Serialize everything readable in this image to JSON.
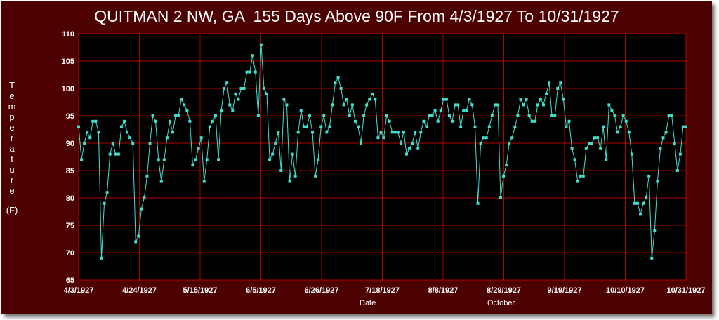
{
  "chart_data": {
    "type": "line",
    "title": "QUITMAN 2 NW, GA  155 Days Above 90F From 4/3/1927 To 10/31/1927",
    "xlabel": "Date",
    "ylabel": "Temperature",
    "ylabel_unit": "(F)",
    "month_label": "October",
    "ylim": [
      65,
      110
    ],
    "yticks": [
      65,
      70,
      75,
      80,
      85,
      90,
      95,
      100,
      105,
      110
    ],
    "xticks": [
      "4/3/1927",
      "4/24/1927",
      "5/15/1927",
      "6/5/1927",
      "6/26/1927",
      "7/18/1927",
      "8/8/1927",
      "8/29/1927",
      "9/19/1927",
      "10/10/1927",
      "10/31/1927"
    ],
    "grid": true,
    "colors": {
      "background": "#4d0000",
      "plot": "#000000",
      "grid": "#b00000",
      "line": "#40e0d0"
    },
    "series": [
      {
        "values": [
          93,
          87,
          90,
          92,
          91,
          94,
          94,
          92,
          69,
          79,
          81,
          88,
          90,
          88,
          88,
          93,
          94,
          92,
          91,
          90,
          72,
          73,
          78,
          80,
          84,
          90,
          95,
          94,
          87,
          83,
          87,
          91,
          94,
          92,
          95,
          95,
          98,
          97,
          96,
          94,
          86,
          87,
          89,
          91,
          83,
          87,
          93,
          94,
          95,
          87,
          96,
          100,
          101,
          97,
          96,
          99,
          98,
          100,
          100,
          103,
          103,
          106,
          103,
          95,
          108,
          100,
          99,
          87,
          88,
          90,
          92,
          85,
          98,
          97,
          83,
          88,
          84,
          92,
          96,
          93,
          93,
          95,
          92,
          84,
          87,
          93,
          95,
          92,
          93,
          97,
          101,
          102,
          100,
          97,
          98,
          95,
          97,
          94,
          93,
          90,
          95,
          97,
          98,
          99,
          98,
          91,
          92,
          91,
          95,
          94,
          92,
          92,
          92,
          90,
          92,
          88,
          89,
          90,
          92,
          89,
          92,
          94,
          93,
          95,
          95,
          96,
          94,
          96,
          98,
          98,
          95,
          94,
          97,
          97,
          93,
          96,
          96,
          98,
          97,
          93,
          79,
          90,
          91,
          91,
          93,
          95,
          97,
          97,
          80,
          84,
          86,
          90,
          91,
          93,
          95,
          98,
          97,
          98,
          95,
          94,
          94,
          97,
          98,
          97,
          99,
          101,
          95,
          95,
          100,
          101,
          98,
          93,
          94,
          89,
          87,
          83,
          84,
          84,
          89,
          90,
          90,
          91,
          91,
          89,
          93,
          87,
          97,
          96,
          95,
          92,
          93,
          95,
          94,
          92,
          88,
          79,
          79,
          77,
          79,
          80,
          84,
          69,
          74,
          83,
          89,
          91,
          92,
          95,
          95,
          90,
          85,
          88,
          93,
          93
        ]
      }
    ]
  }
}
